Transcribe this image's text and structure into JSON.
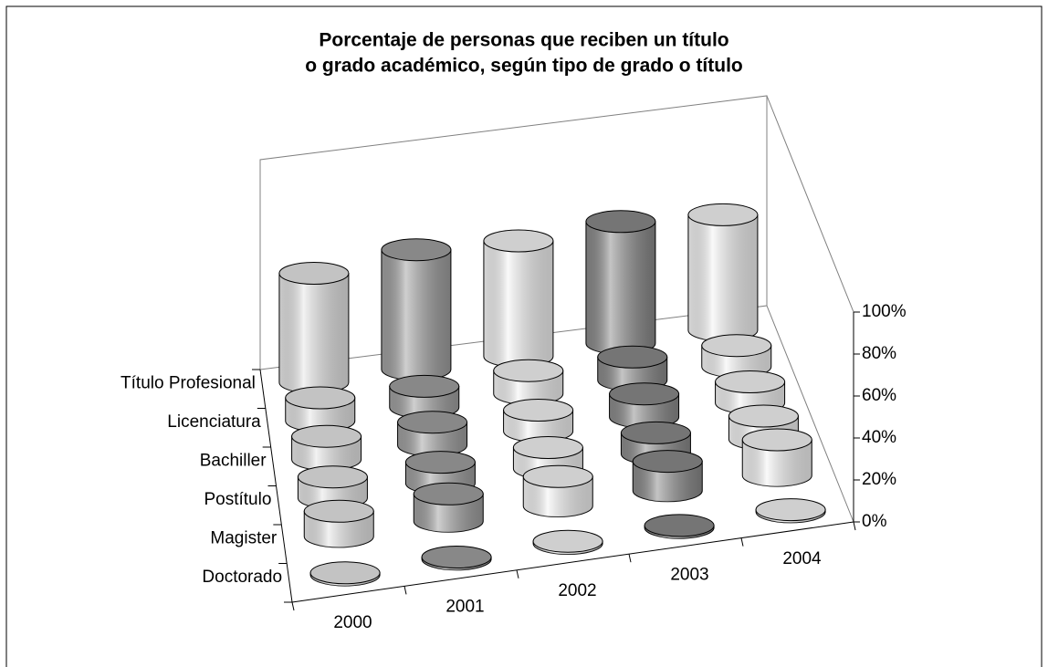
{
  "chart_data": {
    "type": "cylinder3d",
    "title": [
      "Porcentaje de personas que reciben un título",
      "o grado académico, según tipo de grado o título"
    ],
    "categories": [
      "2000",
      "2001",
      "2002",
      "2003",
      "2004"
    ],
    "colors": [
      "#e6e6e6",
      "#a0a0a0",
      "#f4f4f4",
      "#8a8a8a",
      "#f4f4f4"
    ],
    "series": [
      {
        "name": "Título Profesional",
        "values": [
          52,
          57,
          55,
          58,
          55
        ]
      },
      {
        "name": "Licenciatura",
        "values": [
          11,
          10,
          11,
          11,
          10
        ]
      },
      {
        "name": "Bachiller",
        "values": [
          11,
          11,
          10,
          11,
          10
        ]
      },
      {
        "name": "Postítulo",
        "values": [
          10,
          10,
          10,
          10,
          11
        ]
      },
      {
        "name": "Magister",
        "values": [
          12,
          13,
          14,
          14,
          17
        ]
      },
      {
        "name": "Doctorado",
        "values": [
          1,
          1,
          1,
          1,
          1
        ]
      }
    ],
    "ylim": [
      0,
      100
    ],
    "yticks": [
      {
        "value": 0,
        "label": "0%"
      },
      {
        "value": 20,
        "label": "20%"
      },
      {
        "value": 40,
        "label": "40%"
      },
      {
        "value": 60,
        "label": "60%"
      },
      {
        "value": 80,
        "label": "80%"
      },
      {
        "value": 100,
        "label": "100%"
      }
    ]
  }
}
